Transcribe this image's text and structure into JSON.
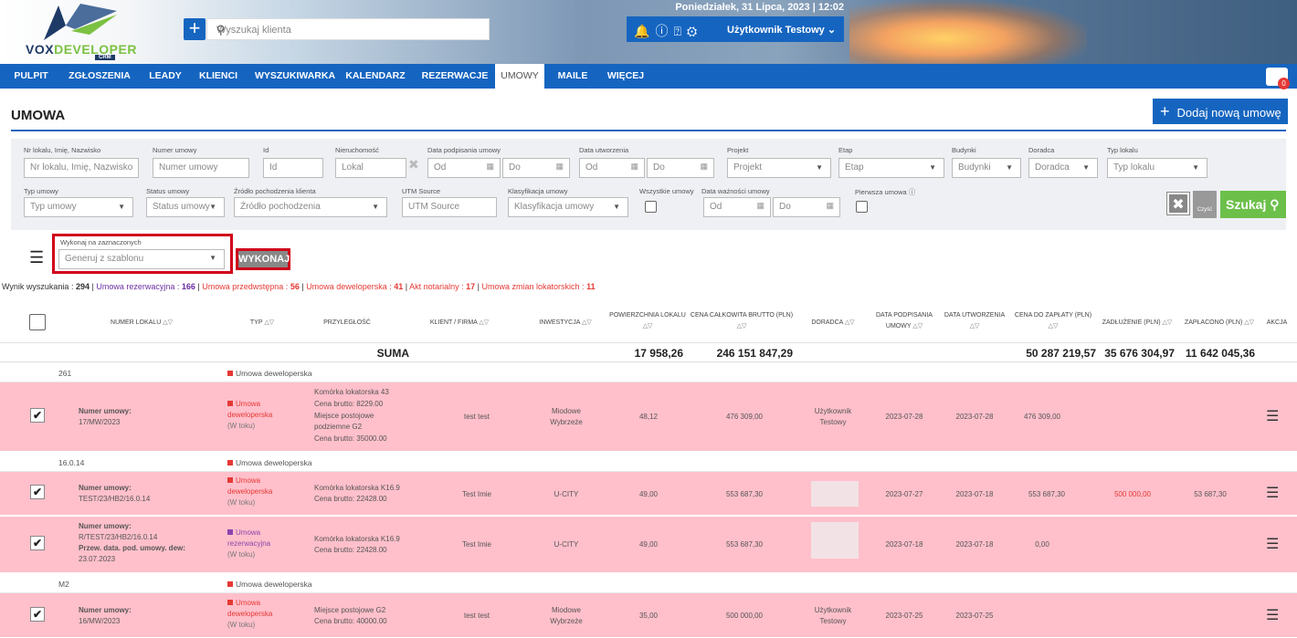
{
  "header": {
    "brand_left": "VOX",
    "brand_right": "DEVELOPER",
    "brand_sub": "CRM",
    "search_placeholder": "Wyszukaj klienta",
    "datetime": "Poniedziałek, 31 Lipca, 2023 | 12:02",
    "user_name": "Użytkownik Testowy",
    "bag_count": "0"
  },
  "nav": {
    "items": [
      "PULPIT",
      "ZGŁOSZENIA",
      "LEADY",
      "KLIENCI",
      "WYSZUKIWARKA",
      "KALENDARZ",
      "REZERWACJE",
      "UMOWY",
      "MAILE",
      "WIĘCEJ"
    ],
    "active": "UMOWY"
  },
  "page": {
    "title": "UMOWA",
    "add_button": "Dodaj nową umowę"
  },
  "filters": {
    "row1": [
      {
        "label": "Nr lokalu, Imię, Nazwisko",
        "placeholder": "Nr lokalu, Imię, Nazwisko"
      },
      {
        "label": "Numer umowy",
        "placeholder": "Numer umowy"
      },
      {
        "label": "Id",
        "placeholder": "Id"
      },
      {
        "label": "Nieruchomość",
        "placeholder": "Lokal"
      },
      {
        "label": "Data podpisania umowy",
        "from": "Od",
        "to": "Do"
      },
      {
        "label": "Data utworzenia",
        "from": "Od",
        "to": "Do"
      },
      {
        "label": "Projekt",
        "placeholder": "Projekt"
      },
      {
        "label": "Etap",
        "placeholder": "Etap"
      },
      {
        "label": "Budynki",
        "placeholder": "Budynki"
      },
      {
        "label": "Doradca",
        "placeholder": "Doradca"
      },
      {
        "label": "Typ lokalu",
        "placeholder": "Typ lokalu"
      }
    ],
    "row2": [
      {
        "label": "Typ umowy",
        "placeholder": "Typ umowy"
      },
      {
        "label": "Status umowy",
        "placeholder": "Status umowy"
      },
      {
        "label": "Źródło pochodzenia klienta",
        "placeholder": "Źródło pochodzenia"
      },
      {
        "label": "UTM Source",
        "placeholder": "UTM Source"
      },
      {
        "label": "Klasyfikacja umowy",
        "placeholder": "Klasyfikacja umowy"
      },
      {
        "label": "Wszystkie umowy"
      },
      {
        "label": "Data ważności umowy",
        "from": "Od",
        "to": "Do"
      },
      {
        "label": "Pierwsza umowa"
      }
    ],
    "clear_label": "Czyść",
    "search_button": "Szukaj"
  },
  "bulk": {
    "label": "Wykonaj na zaznaczonych",
    "select_placeholder": "Generuj z szablonu",
    "execute": "WYKONAJ"
  },
  "summary": {
    "prefix": "Wynik wyszukania :",
    "total": "294",
    "rez_label": "Umowa rezerwacyjna :",
    "rez": "166",
    "prz_label": "Umowa przedwstępna :",
    "prz": "56",
    "dew_label": "Umowa deweloperska :",
    "dew": "41",
    "akt_label": "Akt notarialny :",
    "akt": "17",
    "zmian_label": "Umowa zmian lokatorskich :",
    "zmian": "11"
  },
  "table": {
    "headers": {
      "numer_lokalu": "NUMER LOKALU",
      "typ": "TYP",
      "przylegle": "PRZYLEGŁOŚĆ",
      "klient": "KLIENT / FIRMA",
      "inwestycja": "INWESTYCJA",
      "powierzchnia": "POWIERZCHNIA LOKALU",
      "cena_calkowita": "CENA CAŁKOWITA BRUTTO (PLN)",
      "doradca": "DORADCA",
      "data_podpisania_1": "DATA PODPISANIA",
      "data_podpisania_2": "UMOWY",
      "data_utworzenia": "DATA UTWORZENIA",
      "cena_do_zaplaty": "CENA DO ZAPŁATY (PLN)",
      "zadluzenie": "ZADŁUŻENIE (PLN)",
      "zaplacono": "ZAPŁACONO (PLN)",
      "akcja": "AKCJA"
    },
    "sum": {
      "label": "SUMA",
      "powierzchnia": "17 958,26",
      "cena_calkowita": "246 151 847,29",
      "cena_do_zaplaty": "50 287 219,57",
      "zadluzenie": "35 676 304,97",
      "zaplacono": "11 642 045,36"
    },
    "groups": [
      {
        "lokal": "261",
        "typ": "Umowa deweloperska"
      },
      {
        "lokal": "16.0.14",
        "typ": "Umowa deweloperska"
      },
      {
        "lokal": "M2",
        "typ": "Umowa deweloperska"
      }
    ],
    "rows": [
      {
        "numer_label": "Numer umowy:",
        "numer": "17/MW/2023",
        "typ1": "Umowa",
        "typ2": "deweloperska",
        "status": "(W toku)",
        "prz1": "Komórka lokatorska 43",
        "prz2": "Cena brutto: 8229.00",
        "prz3": "Miejsce postojowe",
        "prz4": "podziemne G2",
        "prz5": "Cena brutto: 35000.00",
        "klient": "test test",
        "inw1": "Miodowe",
        "inw2": "Wybrzeże",
        "pow": "48,12",
        "cena": "476 309,00",
        "dor1": "Użytkownik",
        "dor2": "Testowy",
        "data_p": "2023-07-28",
        "data_u": "2023-07-28",
        "do_zap": "476 309,00",
        "zadl": "",
        "zapl": "",
        "check": "✔"
      },
      {
        "numer_label": "Numer umowy:",
        "numer": "TEST/23/HB2/16.0.14",
        "typ1": "Umowa",
        "typ2": "deweloperska",
        "status": "(W toku)",
        "prz1": "Komórka lokatorska K16.9",
        "prz2": "Cena brutto: 22428.00",
        "klient": "Test Imie",
        "inw1": "U-CITY",
        "pow": "49,00",
        "cena": "553 687,30",
        "data_p": "2023-07-27",
        "data_u": "2023-07-18",
        "do_zap": "553 687,30",
        "zadl": "500 000,00",
        "zapl": "53 687,30",
        "check": "✔"
      },
      {
        "numer_label": "Numer umowy:",
        "numer": "R/TEST/23/HB2/16.0.14",
        "extra_label": "Przew. data. pod. umowy. dew:",
        "extra": "23.07.2023",
        "typ1": "Umowa",
        "typ2": "rezerwacyjna",
        "status": "(W toku)",
        "prz1": "Komórka lokatorska K16.9",
        "prz2": "Cena brutto: 22428.00",
        "klient": "Test Imie",
        "inw1": "U-CITY",
        "pow": "49,00",
        "cena": "553 687,30",
        "data_p": "2023-07-18",
        "data_u": "2023-07-18",
        "do_zap": "0,00",
        "check": "✔"
      },
      {
        "numer_label": "Numer umowy:",
        "numer": "16/MW/2023",
        "typ1": "Umowa",
        "typ2": "deweloperska",
        "status": "(W toku)",
        "prz1": "Miejsce postojowe G2",
        "prz2": "Cena brutto: 40000.00",
        "klient": "test test",
        "inw1": "Miodowe",
        "inw2": "Wybrzeże",
        "pow": "35,00",
        "cena": "500 000,00",
        "dor1": "Użytkownik",
        "dor2": "Testowy",
        "data_p": "2023-07-25",
        "data_u": "2023-07-25",
        "check": "✔"
      }
    ]
  },
  "colors": {
    "primary": "#1565c0",
    "row_highlight": "#ffc0cb",
    "accent_green": "#6cc04a",
    "alert_red": "#d0021b"
  }
}
